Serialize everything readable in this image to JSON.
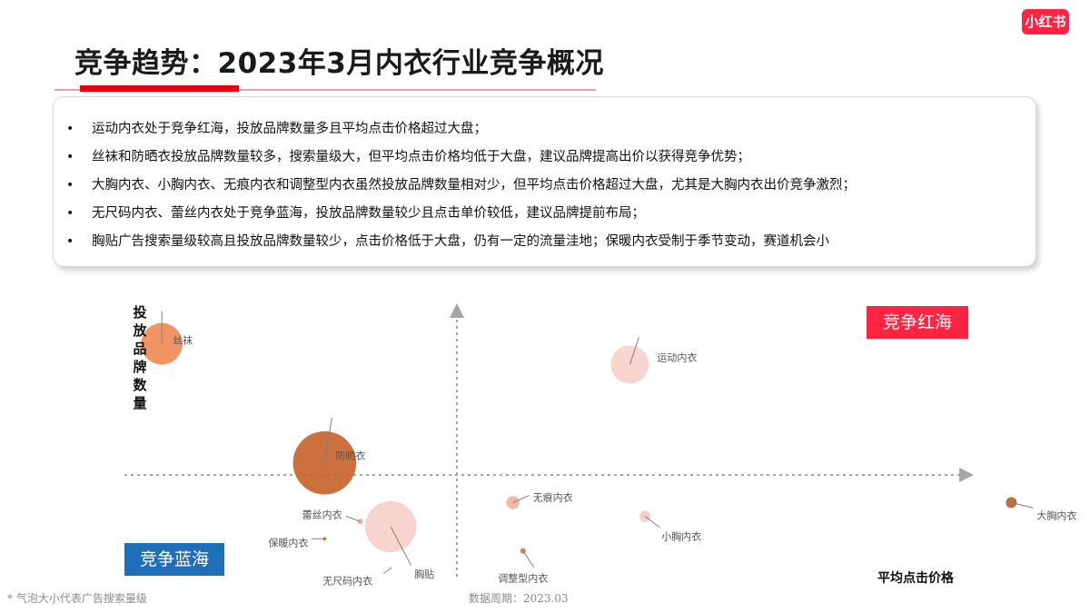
{
  "brand": {
    "logo_text": "小红书",
    "color": "#ff2442"
  },
  "title": "竞争趋势：2023年3月内衣行业竞争概况",
  "summary": [
    "运动内衣处于竞争红海，投放品牌数量多且平均点击价格超过大盘；",
    "丝袜和防晒衣投放品牌数量较多，搜索量级大，但平均点击价格均低于大盘，建议品牌提高出价以获得竞争优势；",
    "大胸内衣、小胸内衣、无痕内衣和调整型内衣虽然投放品牌数量相对少，但平均点击价格超过大盘，尤其是大胸内衣出价竞争激烈；",
    "无尺码内衣、蕾丝内衣处于竞争蓝海，投放品牌数量较少且点击单价较低，建议品牌提前布局；",
    "胸贴广告搜索量级较高且投放品牌数量较少，点击价格低于大盘，仍有一定的流量洼地；保暖内衣受制于季节变动，赛道机会小"
  ],
  "chart": {
    "ylabel": "投放品牌数量",
    "xlabel": "平均点击价格",
    "quadrant_red": "竞争红海",
    "quadrant_blue": "竞争蓝海",
    "footnote": "* 气泡大小代表广告搜索量级",
    "period": "数据周期：2023.03",
    "colors": {
      "red": "#ff2442",
      "blue": "#1e6fb8",
      "axis": "#a6a6a6"
    }
  },
  "chart_data": {
    "type": "scatter",
    "xlabel": "平均点击价格",
    "ylabel": "投放品牌数量",
    "x_range": [
      -1.0,
      1.0
    ],
    "y_range": [
      -1.0,
      1.0
    ],
    "note": "气泡大小代表广告搜索量级",
    "points": [
      {
        "name": "丝袜",
        "x": -0.58,
        "y": 0.76,
        "size": 0.38,
        "color": "#ee8a50",
        "opacity": 0.9
      },
      {
        "name": "运动内衣",
        "x": 0.34,
        "y": 0.64,
        "size": 0.35,
        "color": "#f2b5a8",
        "opacity": 0.55
      },
      {
        "name": "防晒衣",
        "x": -0.26,
        "y": 0.07,
        "size": 0.58,
        "color": "#c8652e",
        "opacity": 0.92
      },
      {
        "name": "胸贴",
        "x": -0.13,
        "y": -0.3,
        "size": 0.47,
        "color": "#f3b7ae",
        "opacity": 0.6
      },
      {
        "name": "蕾丝内衣",
        "x": -0.19,
        "y": -0.27,
        "size": 0.05,
        "color": "#f1a596",
        "opacity": 0.9
      },
      {
        "name": "保暖内衣",
        "x": -0.26,
        "y": -0.37,
        "size": 0.03,
        "color": "#c8652e",
        "opacity": 0.95
      },
      {
        "name": "无尺码内衣",
        "x": -0.13,
        "y": -0.54,
        "size": 0.02,
        "color": "#f0a080",
        "opacity": 0.95
      },
      {
        "name": "无痕内衣",
        "x": 0.11,
        "y": -0.16,
        "size": 0.12,
        "color": "#f2a690",
        "opacity": 0.8
      },
      {
        "name": "小胸内衣",
        "x": 0.37,
        "y": -0.24,
        "size": 0.1,
        "color": "#f6c1b6",
        "opacity": 0.8
      },
      {
        "name": "调整型内衣",
        "x": 0.13,
        "y": -0.44,
        "size": 0.05,
        "color": "#cf7240",
        "opacity": 0.9
      },
      {
        "name": "大胸内衣",
        "x": 1.09,
        "y": -0.16,
        "size": 0.1,
        "color": "#b5602d",
        "opacity": 0.9
      }
    ]
  }
}
